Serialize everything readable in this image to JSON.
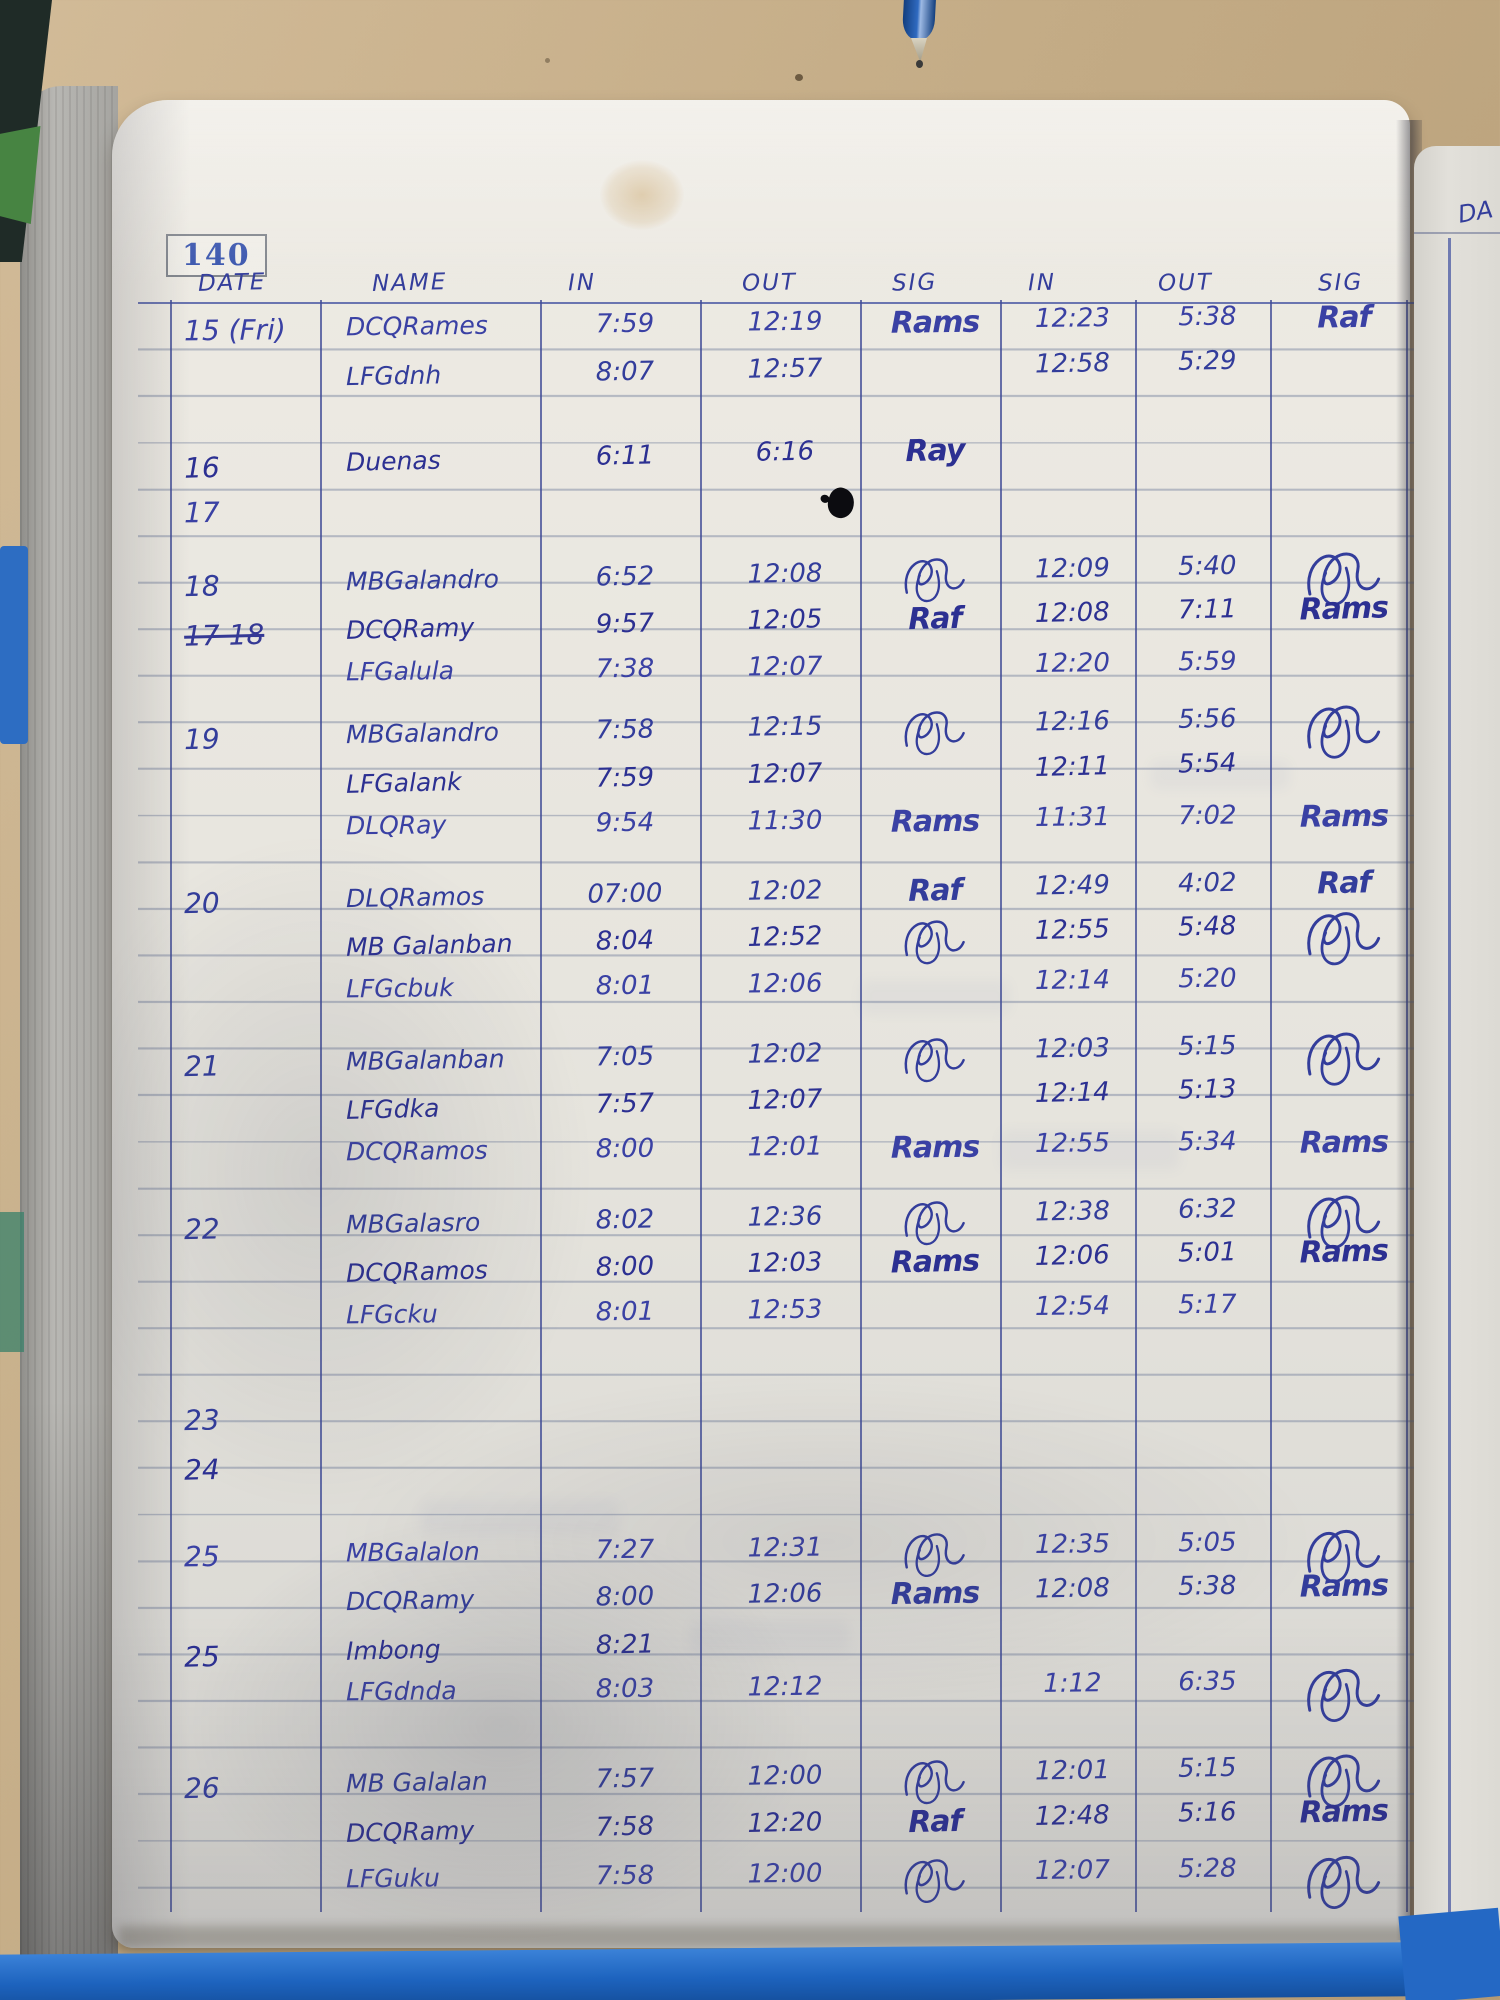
{
  "page_number": "140",
  "next_page_header": "DA",
  "headers": [
    "DATE",
    "NAME",
    "IN",
    "OUT",
    "SIG",
    "IN",
    "OUT",
    "SIG"
  ],
  "colors": {
    "ink": "#333d9b",
    "table_line": "#4a57a3",
    "cover_blue": "#2066c0",
    "desk_tan": "#c3ab85",
    "page_white": "#e9e7e0"
  },
  "rows": [
    {
      "line": 0,
      "date": "15 (Fri)",
      "name": "DCQRames",
      "in1": "7:59",
      "out1": "12:19",
      "sig1": "Rams",
      "in2": "12:23",
      "out2": "5:38",
      "sig2": "Raf"
    },
    {
      "line": 1,
      "name": "LFGdnh",
      "in1": "8:07",
      "out1": "12:57",
      "in2": "12:58",
      "out2": "5:29"
    },
    {
      "line": 2.8,
      "date": "16",
      "name": "Duenas",
      "in1": "6:11",
      "out1": "6:16",
      "sig1": "Ray"
    },
    {
      "line": 3.9,
      "date": "17"
    },
    {
      "line": 5.4,
      "date": "18",
      "name": "MBGalandro",
      "in1": "6:52",
      "out1": "12:08",
      "sig1": "scribble",
      "in2": "12:09",
      "out2": "5:40",
      "sig2": "scribble"
    },
    {
      "line": 6.4,
      "date": "17 18",
      "date_struck": true,
      "name": "DCQRamy",
      "in1": "9:57",
      "out1": "12:05",
      "sig1": "Raf",
      "in2": "12:08",
      "out2": "7:11",
      "sig2": "Rams"
    },
    {
      "line": 7.4,
      "name": "LFGalula",
      "in1": "7:38",
      "out1": "12:07",
      "in2": "12:20",
      "out2": "5:59"
    },
    {
      "line": 8.7,
      "date": "19",
      "name": "MBGalandro",
      "in1": "7:58",
      "out1": "12:15",
      "sig1": "scribble",
      "in2": "12:16",
      "out2": "5:56",
      "sig2": "scribble"
    },
    {
      "line": 9.7,
      "name": "LFGalank",
      "in1": "7:59",
      "out1": "12:07",
      "in2": "12:11",
      "out2": "5:54"
    },
    {
      "line": 10.7,
      "name": "DLQRay",
      "in1": "9:54",
      "out1": "11:30",
      "sig1": "Rams",
      "in2": "11:31",
      "out2": "7:02",
      "sig2": "Rams"
    },
    {
      "line": 12.2,
      "date": "20",
      "name": "DLQRamos",
      "in1": "07:00",
      "out1": "12:02",
      "sig1": "Raf",
      "in2": "12:49",
      "out2": "4:02",
      "sig2": "Raf"
    },
    {
      "line": 13.2,
      "name": "MB Galanban",
      "in1": "8:04",
      "out1": "12:52",
      "sig1": "scribble",
      "in2": "12:55",
      "out2": "5:48",
      "sig2": "scribble"
    },
    {
      "line": 14.2,
      "name": "LFGcbuk",
      "in1": "8:01",
      "out1": "12:06",
      "in2": "12:14",
      "out2": "5:20"
    },
    {
      "line": 15.7,
      "date": "21",
      "name": "MBGalanban",
      "in1": "7:05",
      "out1": "12:02",
      "sig1": "scribble",
      "in2": "12:03",
      "out2": "5:15",
      "sig2": "scribble"
    },
    {
      "line": 16.7,
      "name": "LFGdka",
      "in1": "7:57",
      "out1": "12:07",
      "in2": "12:14",
      "out2": "5:13"
    },
    {
      "line": 17.7,
      "name": "DCQRamos",
      "in1": "8:00",
      "out1": "12:01",
      "sig1": "Rams",
      "in2": "12:55",
      "out2": "5:34",
      "sig2": "Rams"
    },
    {
      "line": 19.2,
      "date": "22",
      "name": "MBGalasro",
      "in1": "8:02",
      "out1": "12:36",
      "sig1": "scribble",
      "in2": "12:38",
      "out2": "6:32",
      "sig2": "scribble"
    },
    {
      "line": 20.2,
      "name": "DCQRamos",
      "in1": "8:00",
      "out1": "12:03",
      "sig1": "Rams",
      "in2": "12:06",
      "out2": "5:01",
      "sig2": "Rams"
    },
    {
      "line": 21.2,
      "name": "LFGcku",
      "in1": "8:01",
      "out1": "12:53",
      "in2": "12:54",
      "out2": "5:17"
    },
    {
      "line": 23.3,
      "date": "23"
    },
    {
      "line": 24.3,
      "date": "24"
    },
    {
      "line": 26.3,
      "date": "25",
      "name": "MBGalalon",
      "in1": "7:27",
      "out1": "12:31",
      "sig1": "scribble",
      "in2": "12:35",
      "out2": "5:05",
      "sig2": "scribble"
    },
    {
      "line": 27.3,
      "name": "DCQRamy",
      "in1": "8:00",
      "out1": "12:06",
      "sig1": "Rams",
      "in2": "12:08",
      "out2": "5:38",
      "sig2": "Rams"
    },
    {
      "line": 28.3,
      "date": "25",
      "name": "Imbong",
      "in1": "8:21"
    },
    {
      "line": 29.3,
      "name": "LFGdnda",
      "in1": "8:03",
      "out1": "12:12",
      "in2": "1:12",
      "out2": "6:35",
      "sig2": "scribble"
    },
    {
      "line": 31.2,
      "date": "26",
      "name": "MB Galalan",
      "in1": "7:57",
      "out1": "12:00",
      "sig1": "scribble",
      "in2": "12:01",
      "out2": "5:15",
      "sig2": "scribble"
    },
    {
      "line": 32.2,
      "name": "DCQRamy",
      "in1": "7:58",
      "out1": "12:20",
      "sig1": "Raf",
      "in2": "12:48",
      "out2": "5:16",
      "sig2": "Rams"
    },
    {
      "line": 33.3,
      "name": "LFGuku",
      "in1": "7:58",
      "out1": "12:00",
      "sig1": "scribble",
      "in2": "12:07",
      "out2": "5:28",
      "sig2": "scribble"
    }
  ]
}
